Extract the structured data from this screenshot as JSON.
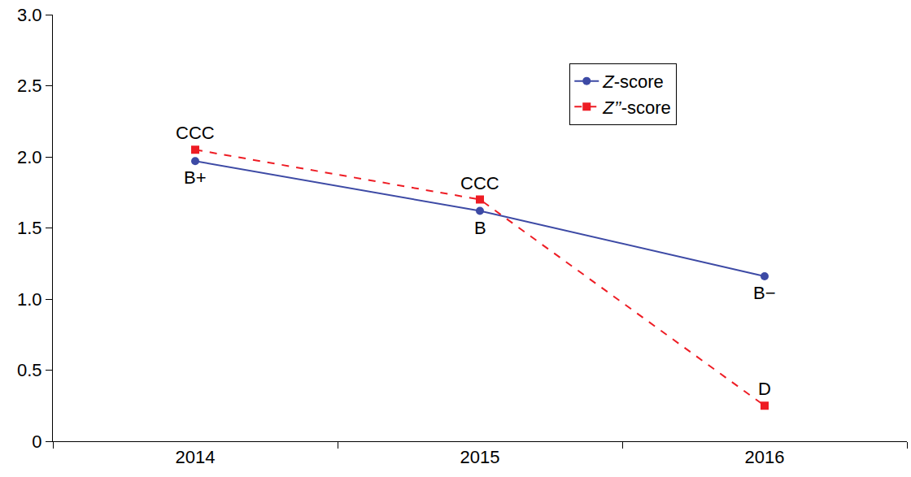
{
  "chart_data": {
    "type": "line",
    "categories": [
      "2014",
      "2015",
      "2016"
    ],
    "series": [
      {
        "name": "Z-score",
        "color": "#3d4aa5",
        "marker": "circle",
        "line_style": "solid",
        "values": [
          1.97,
          1.62,
          1.16
        ],
        "annotations": [
          "B+",
          "B",
          "B−"
        ]
      },
      {
        "name": "Z’’-score",
        "color": "#ee1c24",
        "marker": "square",
        "line_style": "dash",
        "values": [
          2.05,
          1.7,
          0.25
        ],
        "annotations": [
          "CCC",
          "CCC",
          "D"
        ]
      }
    ],
    "ylim": [
      0,
      3
    ],
    "yticks": [
      0,
      0.5,
      {
        "value": 1,
        "label": "1.0"
      },
      1.5,
      {
        "value": 2,
        "label": "2.0"
      },
      2.5,
      {
        "value": 3,
        "label": "3.0"
      }
    ],
    "grid": false,
    "legend": "upper right"
  }
}
